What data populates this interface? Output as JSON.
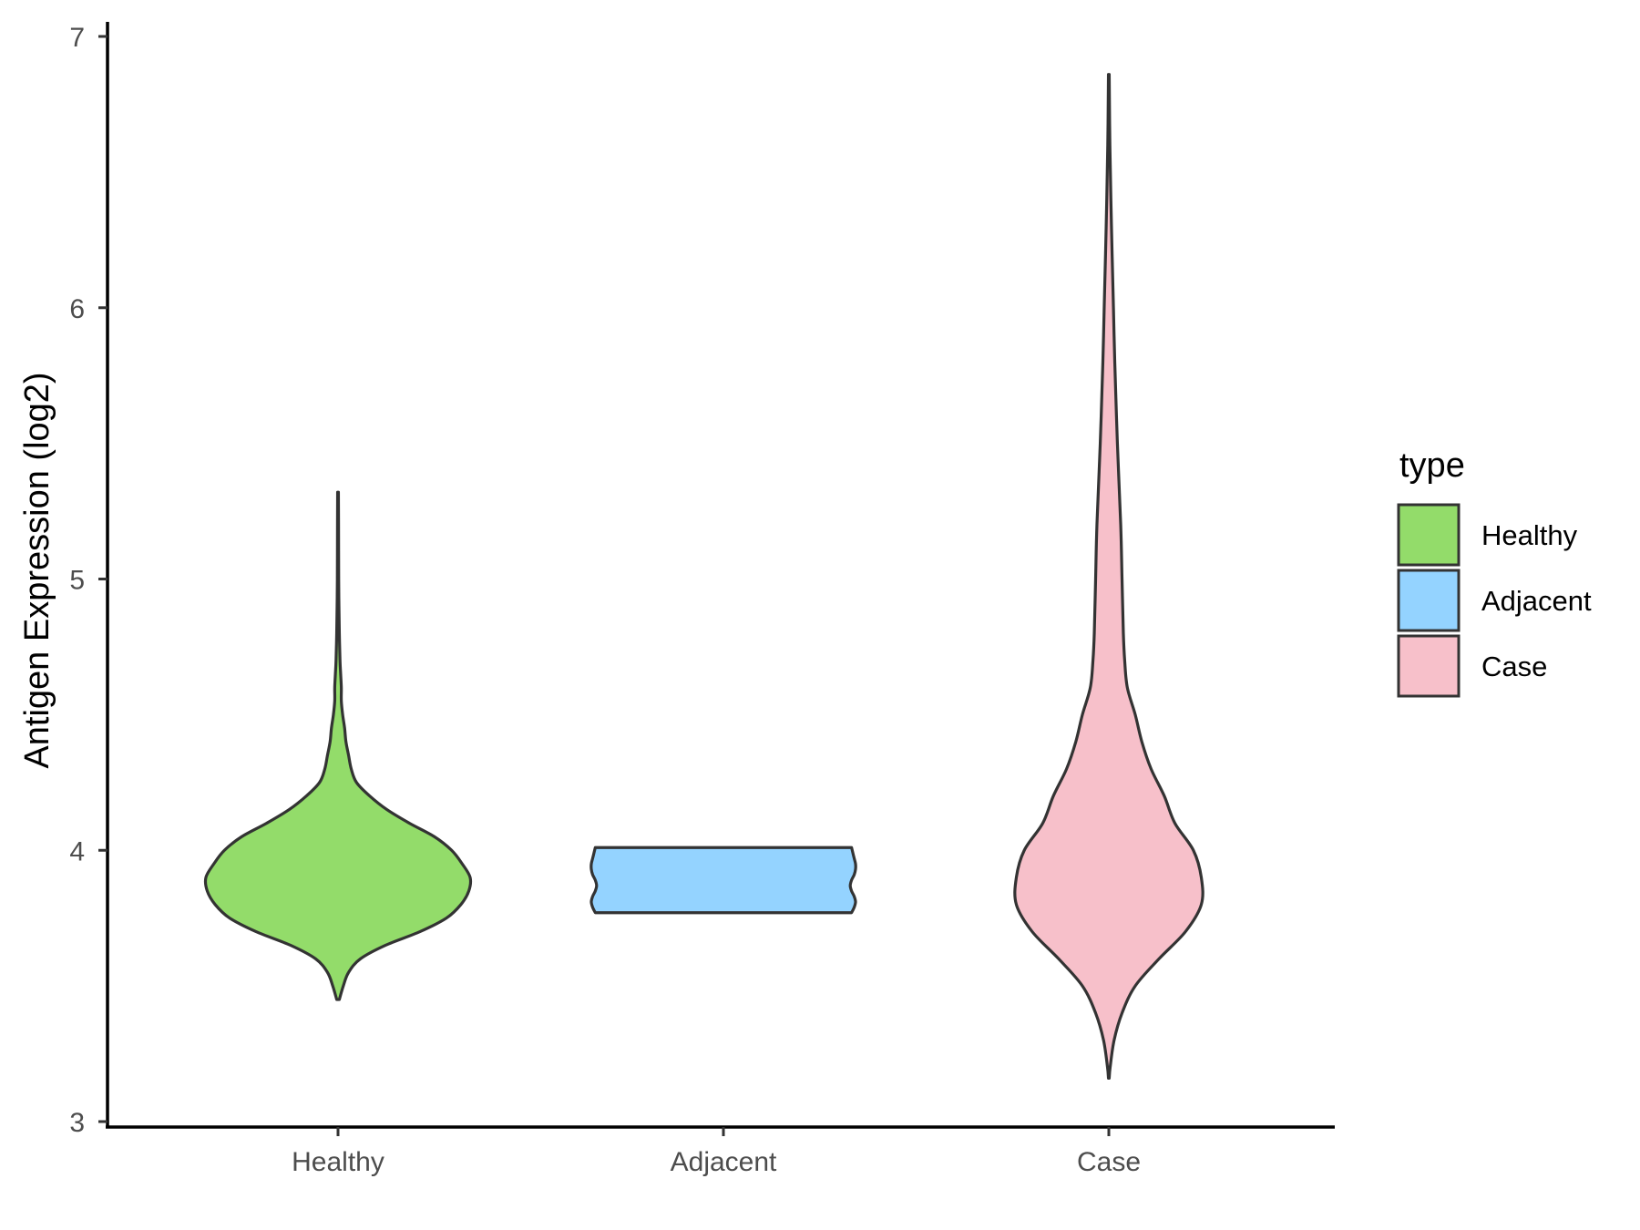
{
  "chart_data": {
    "type": "violin",
    "ylabel": "Antigen Expression (log2)",
    "xlabel": "",
    "ylim": [
      3,
      7
    ],
    "y_ticks": [
      3,
      4,
      5,
      6,
      7
    ],
    "categories": [
      "Healthy",
      "Adjacent",
      "Case"
    ],
    "grid": false,
    "legend": {
      "title": "type",
      "placement": "right",
      "entries": [
        {
          "label": "Healthy",
          "color": "#93dc6a"
        },
        {
          "label": "Adjacent",
          "color": "#94d3ff"
        },
        {
          "label": "Case",
          "color": "#f7c0ca"
        }
      ]
    },
    "series": [
      {
        "category": "Healthy",
        "color": "#93dc6a",
        "min": 3.45,
        "max": 5.32,
        "density": [
          [
            3.45,
            0.01
          ],
          [
            3.5,
            0.04
          ],
          [
            3.55,
            0.08
          ],
          [
            3.6,
            0.17
          ],
          [
            3.65,
            0.36
          ],
          [
            3.7,
            0.62
          ],
          [
            3.75,
            0.82
          ],
          [
            3.8,
            0.93
          ],
          [
            3.85,
            0.99
          ],
          [
            3.9,
            1.0
          ],
          [
            3.95,
            0.94
          ],
          [
            4.0,
            0.86
          ],
          [
            4.05,
            0.73
          ],
          [
            4.1,
            0.54
          ],
          [
            4.15,
            0.37
          ],
          [
            4.2,
            0.24
          ],
          [
            4.25,
            0.14
          ],
          [
            4.3,
            0.1
          ],
          [
            4.35,
            0.08
          ],
          [
            4.4,
            0.06
          ],
          [
            4.45,
            0.05
          ],
          [
            4.5,
            0.035
          ],
          [
            4.55,
            0.025
          ],
          [
            4.6,
            0.025
          ],
          [
            4.65,
            0.02
          ],
          [
            4.7,
            0.015
          ],
          [
            4.8,
            0.01
          ],
          [
            4.9,
            0.007
          ],
          [
            5.0,
            0.005
          ],
          [
            5.2,
            0.004
          ],
          [
            5.32,
            0.003
          ]
        ]
      },
      {
        "category": "Adjacent",
        "color": "#94d3ff",
        "min": 3.77,
        "max": 4.01,
        "density": [
          [
            3.77,
            0.97
          ],
          [
            3.79,
            0.99
          ],
          [
            3.81,
            1.0
          ],
          [
            3.83,
            0.99
          ],
          [
            3.85,
            0.97
          ],
          [
            3.87,
            0.96
          ],
          [
            3.89,
            0.97
          ],
          [
            3.91,
            0.99
          ],
          [
            3.93,
            1.0
          ],
          [
            3.95,
            1.0
          ],
          [
            3.97,
            0.99
          ],
          [
            3.99,
            0.98
          ],
          [
            4.01,
            0.97
          ]
        ]
      },
      {
        "category": "Case",
        "color": "#f7c0ca",
        "min": 3.16,
        "max": 6.86,
        "density": [
          [
            3.16,
            0.003
          ],
          [
            3.2,
            0.01
          ],
          [
            3.3,
            0.04
          ],
          [
            3.4,
            0.1
          ],
          [
            3.5,
            0.2
          ],
          [
            3.6,
            0.38
          ],
          [
            3.7,
            0.58
          ],
          [
            3.8,
            0.7
          ],
          [
            3.9,
            0.7
          ],
          [
            4.0,
            0.64
          ],
          [
            4.1,
            0.5
          ],
          [
            4.2,
            0.42
          ],
          [
            4.3,
            0.32
          ],
          [
            4.4,
            0.25
          ],
          [
            4.5,
            0.2
          ],
          [
            4.6,
            0.14
          ],
          [
            4.7,
            0.12
          ],
          [
            4.8,
            0.11
          ],
          [
            5.0,
            0.1
          ],
          [
            5.2,
            0.09
          ],
          [
            5.5,
            0.065
          ],
          [
            5.8,
            0.045
          ],
          [
            6.0,
            0.035
          ],
          [
            6.3,
            0.02
          ],
          [
            6.6,
            0.008
          ],
          [
            6.86,
            0.003
          ]
        ]
      }
    ]
  }
}
